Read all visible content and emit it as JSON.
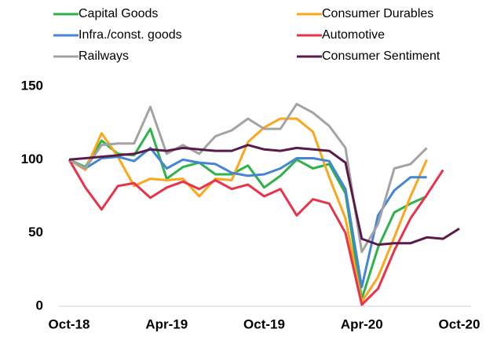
{
  "chart_data": {
    "type": "line",
    "categories": [
      "Oct-18",
      null,
      null,
      null,
      null,
      null,
      "Apr-19",
      null,
      null,
      null,
      null,
      null,
      "Oct-19",
      null,
      null,
      null,
      null,
      null,
      "Apr-20",
      null,
      null,
      null,
      null,
      null,
      "Oct-20"
    ],
    "series": [
      {
        "name": "Capital Goods",
        "color": "#2eb24a",
        "values": [
          100,
          95,
          113,
          104,
          103,
          121,
          87,
          95,
          98,
          90,
          90,
          96,
          81,
          89,
          100,
          94,
          97,
          77,
          5,
          40,
          64,
          70,
          75,
          null,
          null
        ]
      },
      {
        "name": "Consumer Durables",
        "color": "#fca71b",
        "values": [
          100,
          93,
          118,
          102,
          82,
          87,
          86,
          87,
          75,
          87,
          86,
          112,
          122,
          128,
          128,
          119,
          88,
          60,
          3,
          20,
          47,
          75,
          100,
          null,
          null
        ]
      },
      {
        "name": "Infra./const. goods",
        "color": "#4485d6",
        "values": [
          100,
          94,
          101,
          102,
          99,
          108,
          94,
          100,
          98,
          97,
          91,
          89,
          90,
          94,
          101,
          101,
          99,
          80,
          13,
          62,
          79,
          88,
          88,
          null,
          null
        ]
      },
      {
        "name": "Automotive",
        "color": "#e8334a",
        "values": [
          100,
          81,
          66,
          82,
          84,
          74,
          81,
          85,
          80,
          86,
          80,
          83,
          75,
          80,
          62,
          73,
          70,
          50,
          1,
          12,
          38,
          60,
          76,
          93,
          null
        ]
      },
      {
        "name": "Railways",
        "color": "#a3a3a3",
        "values": [
          100,
          94,
          110,
          111,
          111,
          136,
          104,
          110,
          104,
          116,
          120,
          128,
          121,
          121,
          138,
          132,
          123,
          108,
          37,
          56,
          94,
          97,
          108,
          null,
          null
        ]
      },
      {
        "name": "Consumer Sentiment",
        "color": "#5a1b48",
        "values": [
          100,
          101,
          102,
          103,
          104,
          107,
          106,
          108,
          107,
          106,
          106,
          110,
          107,
          106,
          108,
          107,
          106,
          98,
          46,
          42,
          43,
          43,
          47,
          46,
          53
        ]
      }
    ],
    "ylim": [
      0,
      150
    ],
    "yticks": [
      0,
      50,
      100,
      150
    ],
    "legend": "top"
  }
}
